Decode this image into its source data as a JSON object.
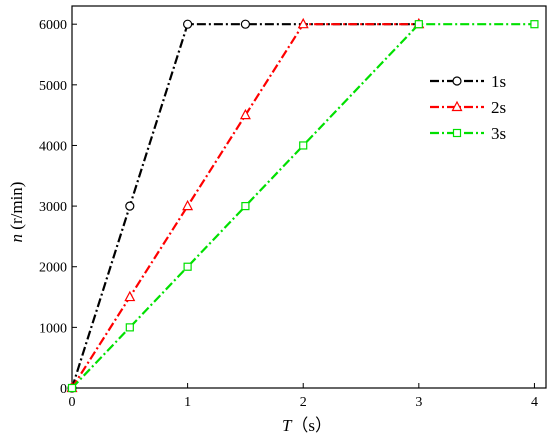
{
  "chart_data": {
    "type": "line",
    "xlabel": {
      "var": "T",
      "unit": "（s）"
    },
    "ylabel": {
      "var": "n",
      "unit": " (r/min)"
    },
    "xlim": [
      0,
      4.1
    ],
    "ylim": [
      0,
      6300
    ],
    "xticks": [
      "0",
      "1",
      "2",
      "3",
      "4"
    ],
    "yticks": [
      "0",
      "1000",
      "2000",
      "3000",
      "4000",
      "5000",
      "6000"
    ],
    "legend_position": "top-right",
    "series": [
      {
        "name": "1s",
        "color": "#000000",
        "marker": "circle",
        "dash": "dashdot",
        "line_x": [
          0,
          1,
          3
        ],
        "line_y": [
          0,
          6000,
          6000
        ],
        "marker_x": [
          0,
          0.5,
          1,
          1.5
        ],
        "marker_y": [
          0,
          3000,
          6000,
          6000
        ]
      },
      {
        "name": "2s",
        "color": "#ff0000",
        "marker": "triangle",
        "dash": "dashdot",
        "line_x": [
          0,
          2,
          3
        ],
        "line_y": [
          0,
          6000,
          6000
        ],
        "marker_x": [
          0,
          0.5,
          1,
          1.5,
          2,
          3
        ],
        "marker_y": [
          0,
          1500,
          3000,
          4500,
          6000,
          6000
        ]
      },
      {
        "name": "3s",
        "color": "#00e000",
        "marker": "square",
        "dash": "dashdot",
        "line_x": [
          0,
          3,
          4
        ],
        "line_y": [
          0,
          6000,
          6000
        ],
        "marker_x": [
          0,
          0.5,
          1,
          1.5,
          2,
          3,
          4
        ],
        "marker_y": [
          0,
          1000,
          2000,
          3000,
          4000,
          6000,
          6000
        ]
      }
    ]
  }
}
